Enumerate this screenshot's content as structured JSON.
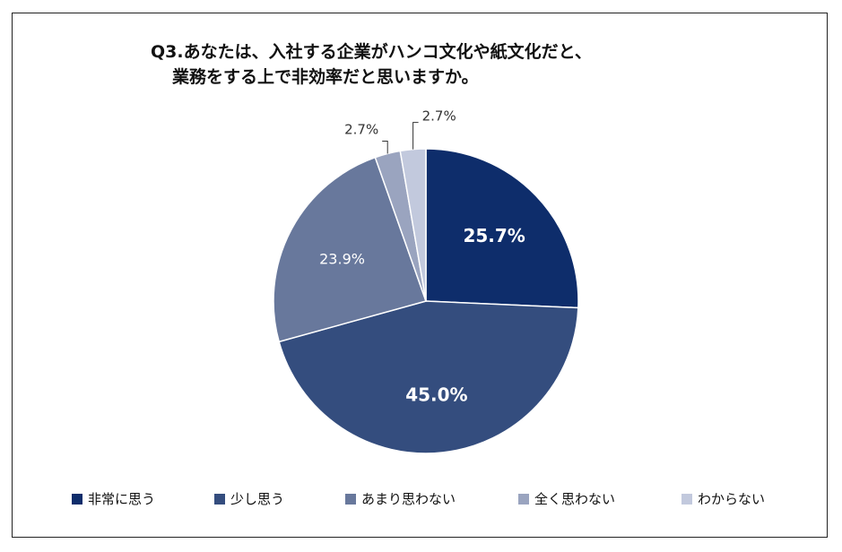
{
  "title_line1": "Q3.あなたは、入社する企業がハンコ文化や紙文化だと、",
  "title_line2": "業務をする上で非効率だと思いますか。",
  "chart_data": {
    "type": "pie",
    "categories": [
      "非常に思う",
      "少し思う",
      "あまり思わない",
      "全く思わない",
      "わからない"
    ],
    "values": [
      25.7,
      45.0,
      23.9,
      2.7,
      2.7
    ],
    "labels": [
      "25.7%",
      "45.0%",
      "23.9%",
      "2.7%",
      "2.7%"
    ],
    "colors": [
      "#0e2d6b",
      "#344d7e",
      "#68789c",
      "#9aa4bf",
      "#c2c9dd"
    ],
    "label_colors": [
      "#ffffff",
      "#ffffff",
      "#ffffff",
      "#333333",
      "#333333"
    ],
    "start": "12 o'clock",
    "direction": "clockwise",
    "legend_position": "bottom"
  }
}
